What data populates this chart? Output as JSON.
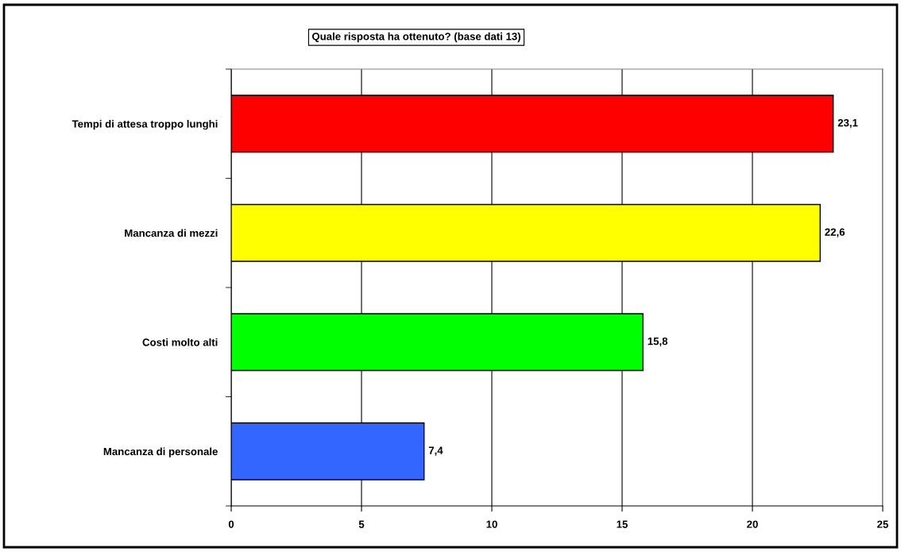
{
  "chart_data": {
    "type": "bar",
    "orientation": "horizontal",
    "title": "Quale risposta ha ottenuto? (base dati 13)",
    "categories": [
      "Tempi di attesa troppo lunghi",
      "Mancanza di mezzi",
      "Costi molto alti",
      "Mancanza di personale"
    ],
    "values": [
      23.1,
      22.6,
      15.8,
      7.4
    ],
    "colors": [
      "#ff0000",
      "#ffff00",
      "#00ff00",
      "#3366ff"
    ],
    "value_labels": [
      "23,1",
      "22,6",
      "15,8",
      "7,4"
    ],
    "xlim": [
      0,
      25
    ],
    "xticks": [
      0,
      5,
      10,
      15,
      20,
      25
    ],
    "grid": "x",
    "legend": false
  }
}
